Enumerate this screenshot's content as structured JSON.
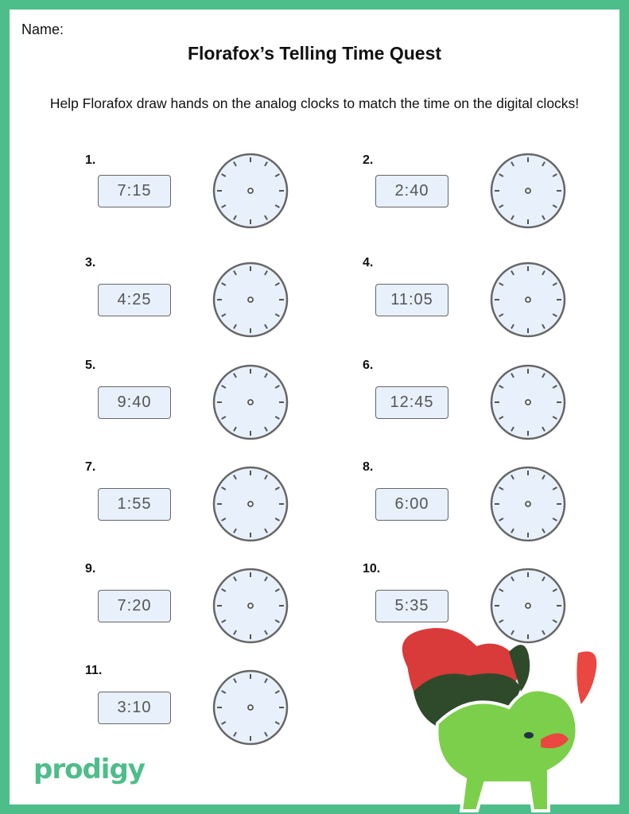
{
  "worksheet": {
    "name_label": "Name:",
    "title": "Florafox’s Telling Time Quest",
    "instructions": "Help Florafox draw hands on the analog clocks to match the time on the digital clocks!",
    "items": [
      {
        "number": "1.",
        "time": "7:15"
      },
      {
        "number": "2.",
        "time": "2:40"
      },
      {
        "number": "3.",
        "time": "4:25"
      },
      {
        "number": "4.",
        "time": "11:05"
      },
      {
        "number": "5.",
        "time": "9:40"
      },
      {
        "number": "6.",
        "time": "12:45"
      },
      {
        "number": "7.",
        "time": "1:55"
      },
      {
        "number": "8.",
        "time": "6:00"
      },
      {
        "number": "9.",
        "time": "7:20"
      },
      {
        "number": "10.",
        "time": "5:35"
      },
      {
        "number": "11.",
        "time": "3:10"
      }
    ],
    "logo": "prodigy",
    "colors": {
      "border": "#4dbd8a",
      "digital_bg": "#e8f0fb",
      "clock_face": "#e8f0fb"
    }
  }
}
